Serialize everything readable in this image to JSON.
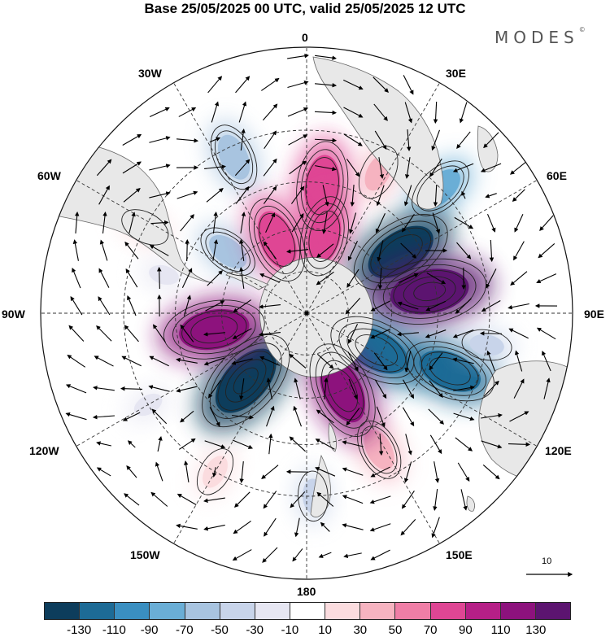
{
  "title": "Base 25/05/2025 00 UTC, valid 25/05/2025 12 UTC",
  "brand": "MODES",
  "brand_mark": "©",
  "longitude_labels": {
    "lon_0": "0",
    "lon_30e": "30E",
    "lon_60e": "60E",
    "lon_90e": "90E",
    "lon_120e": "120E",
    "lon_150e": "150E",
    "lon_180": "180",
    "lon_150w": "150W",
    "lon_120w": "120W",
    "lon_90w": "90W",
    "lon_60w": "60W",
    "lon_30w": "30W"
  },
  "reference_vector_label": "10",
  "colorbar": {
    "colors": [
      "#0d3d5c",
      "#1d6b96",
      "#3a8fc1",
      "#6aaed6",
      "#a8c4e0",
      "#c8d4ea",
      "#e6e6f2",
      "#ffffff",
      "#fbdcdf",
      "#f6b3c0",
      "#ef7ea6",
      "#df4694",
      "#b61f87",
      "#8d127d",
      "#5c1470"
    ],
    "ticks": [
      "-130",
      "-110",
      "-90",
      "-70",
      "-50",
      "-30",
      "-10",
      "10",
      "30",
      "50",
      "70",
      "90",
      "110",
      "130"
    ]
  },
  "projection": "south-polar-stereographic",
  "field_anomalies": [
    {
      "lon": 7,
      "lat": -46,
      "value": 95,
      "color": "#df4694"
    },
    {
      "lon": 13,
      "lat": -62,
      "value": 80,
      "color": "#df4694"
    },
    {
      "lon": 27,
      "lat": -37,
      "value": 40,
      "color": "#f6b3c0"
    },
    {
      "lon": 47,
      "lat": -30,
      "value": -60,
      "color": "#6aaed6"
    },
    {
      "lon": 57,
      "lat": -51,
      "value": -120,
      "color": "#0d3d5c"
    },
    {
      "lon": 80,
      "lat": -47,
      "value": 135,
      "color": "#5c1470"
    },
    {
      "lon": 112,
      "lat": -38,
      "value": -100,
      "color": "#1d6b96"
    },
    {
      "lon": 118,
      "lat": -62,
      "value": -110,
      "color": "#1d6b96"
    },
    {
      "lon": 152,
      "lat": -38,
      "value": 50,
      "color": "#f6b3c0"
    },
    {
      "lon": 155,
      "lat": -60,
      "value": 110,
      "color": "#8d127d"
    },
    {
      "lon": -138,
      "lat": -58,
      "value": -130,
      "color": "#0d3d5c"
    },
    {
      "lon": -100,
      "lat": -57,
      "value": 115,
      "color": "#8d127d"
    },
    {
      "lon": -52,
      "lat": -55,
      "value": -50,
      "color": "#a8c4e0"
    },
    {
      "lon": -25,
      "lat": -33,
      "value": -60,
      "color": "#a8c4e0"
    },
    {
      "lon": -62,
      "lat": -30,
      "value": 30,
      "color": "#fbdcdf"
    },
    {
      "lon": -22,
      "lat": -62,
      "value": 90,
      "color": "#df4694"
    },
    {
      "lon": 178,
      "lat": -30,
      "value": -30,
      "color": "#c8d4ea"
    },
    {
      "lon": -150,
      "lat": -30,
      "value": 30,
      "color": "#fbdcdf"
    },
    {
      "lon": -120,
      "lat": -30,
      "value": -20,
      "color": "#e6e6f2"
    },
    {
      "lon": -75,
      "lat": -40,
      "value": -20,
      "color": "#e6e6f2"
    },
    {
      "lon": 100,
      "lat": -30,
      "value": -30,
      "color": "#c8d4ea"
    }
  ]
}
